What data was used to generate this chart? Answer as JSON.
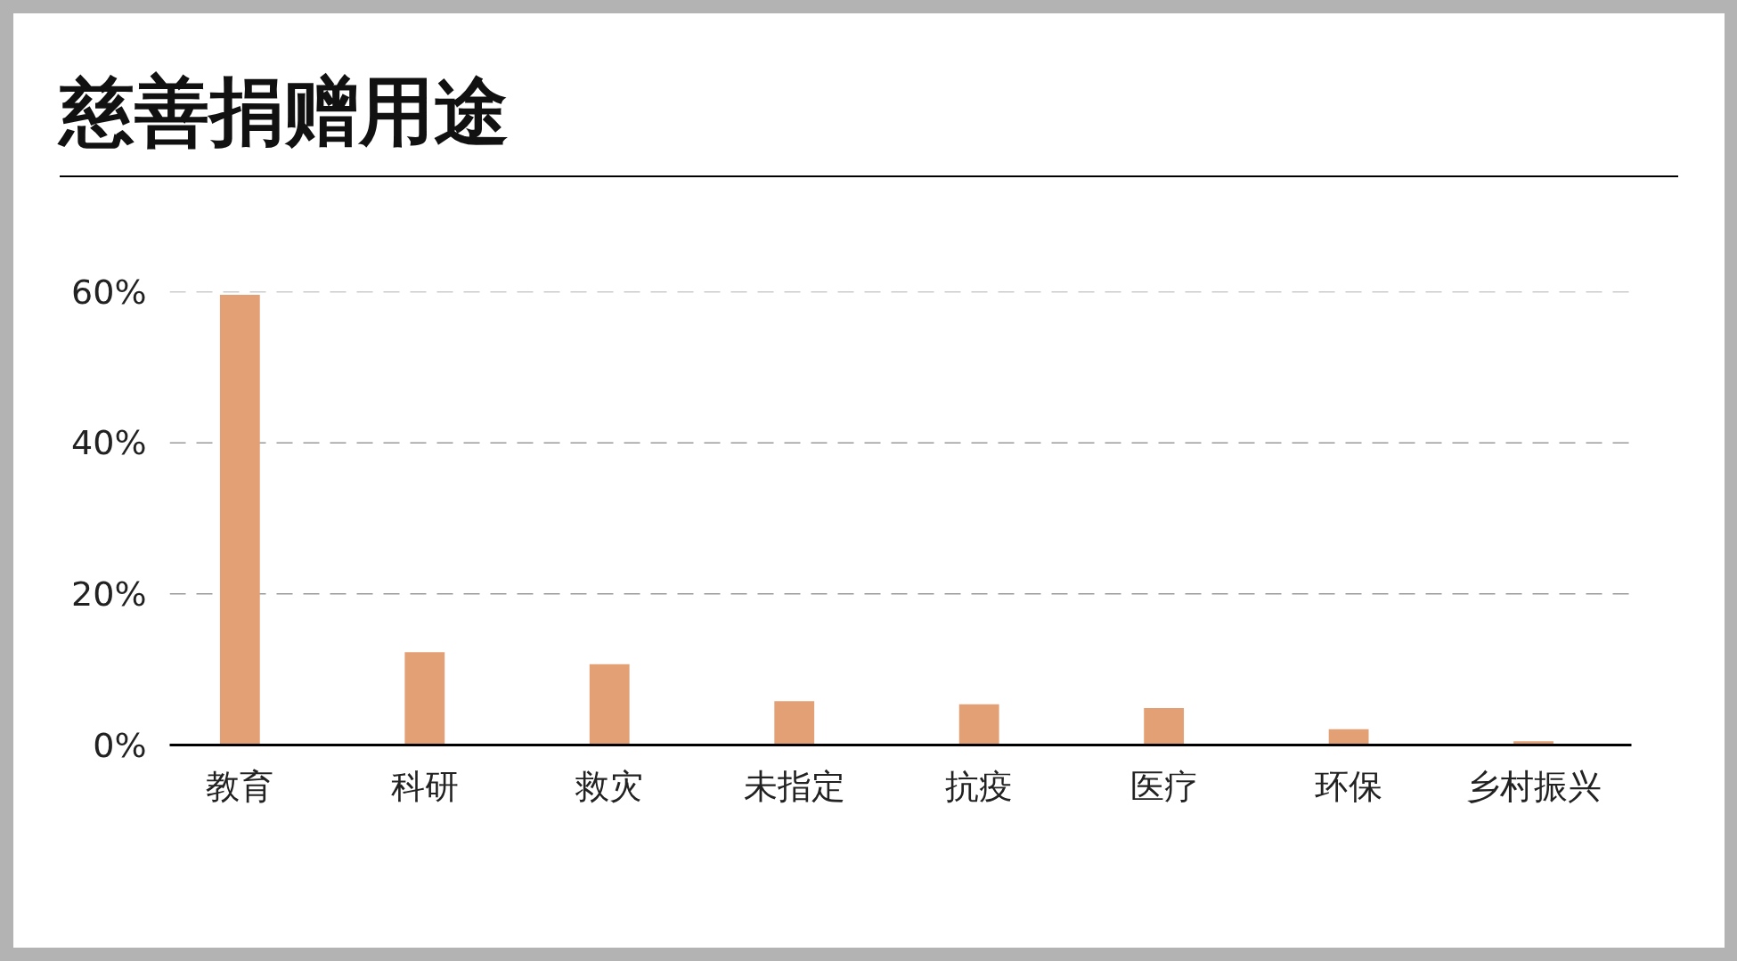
{
  "chart_data": {
    "type": "bar",
    "title": "慈善捐赠用途",
    "categories": [
      "教育",
      "科研",
      "救灾",
      "未指定",
      "抗疫",
      "医疗",
      "环保",
      "乡村振兴"
    ],
    "values": [
      59.6,
      12.3,
      10.7,
      5.8,
      5.4,
      4.9,
      2.1,
      0.5
    ],
    "color": "#e3a075",
    "ylim": [
      0,
      60
    ],
    "yticks": [
      {
        "value": 0,
        "label": "0%"
      },
      {
        "value": 20,
        "label": "20%"
      },
      {
        "value": 40,
        "label": "40%"
      },
      {
        "value": 60,
        "label": "60%"
      }
    ],
    "grid": "y"
  }
}
